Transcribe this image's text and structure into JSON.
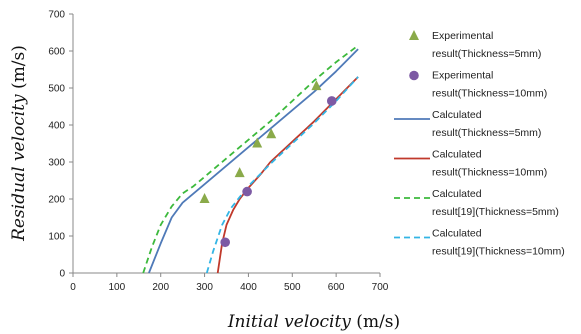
{
  "chart_data": {
    "type": "scatter",
    "xlabel_main": "Initial velocity",
    "xlabel_unit": " (m/s)",
    "ylabel_main": "Residual velocity",
    "ylabel_unit": " (m/s)",
    "xlim": [
      0,
      700
    ],
    "ylim": [
      0,
      700
    ],
    "xticks": [
      0,
      100,
      200,
      300,
      400,
      500,
      600,
      700
    ],
    "yticks": [
      0,
      100,
      200,
      300,
      400,
      500,
      600,
      700
    ],
    "grid": false,
    "legend_position": "right",
    "series": [
      {
        "name_line1": "Experimental",
        "name_line2": "result(Thickness=5mm)",
        "kind": "marker",
        "marker": "triangle",
        "color": "#8aaa4a",
        "x": [
          300,
          380,
          420,
          452,
          555
        ],
        "y": [
          200,
          270,
          350,
          375,
          505
        ]
      },
      {
        "name_line1": "Experimental",
        "name_line2": "result(Thickness=10mm)",
        "kind": "marker",
        "marker": "circle",
        "color": "#7d5aa4",
        "x": [
          347,
          397,
          590
        ],
        "y": [
          83,
          220,
          465
        ]
      },
      {
        "name_line1": "Calculated",
        "name_line2": "result(Thickness=5mm)",
        "kind": "line",
        "dash": "solid",
        "color": "#4f7ab8",
        "x": [
          173,
          200,
          225,
          250,
          275,
          300,
          350,
          400,
          450,
          500,
          550,
          600,
          650
        ],
        "y": [
          0,
          80,
          150,
          190,
          215,
          240,
          290,
          340,
          390,
          440,
          490,
          545,
          605
        ]
      },
      {
        "name_line1": "Calculated",
        "name_line2": "result(Thickness=10mm)",
        "kind": "line",
        "dash": "solid",
        "color": "#c0392b",
        "x": [
          330,
          340,
          350,
          365,
          380,
          400,
          430,
          450,
          500,
          550,
          600,
          650
        ],
        "y": [
          0,
          80,
          130,
          170,
          200,
          230,
          270,
          300,
          355,
          410,
          470,
          530
        ]
      },
      {
        "name_line1": "Calculated",
        "name_line2": "result[19](Thickness=5mm)",
        "kind": "line",
        "dash": "dashed",
        "color": "#3cb93c",
        "x": [
          160,
          180,
          200,
          225,
          250,
          275,
          300,
          350,
          400,
          450,
          500,
          550,
          600,
          650
        ],
        "y": [
          0,
          70,
          130,
          180,
          215,
          235,
          260,
          310,
          360,
          410,
          465,
          520,
          570,
          615
        ]
      },
      {
        "name_line1": "Calculated",
        "name_line2": "result[19](Thickness=10mm)",
        "kind": "line",
        "dash": "dashed",
        "color": "#33b5e5",
        "x": [
          305,
          320,
          340,
          360,
          380,
          400,
          450,
          500,
          550,
          600,
          650
        ],
        "y": [
          0,
          60,
          130,
          175,
          205,
          235,
          295,
          350,
          405,
          465,
          530
        ]
      }
    ]
  }
}
